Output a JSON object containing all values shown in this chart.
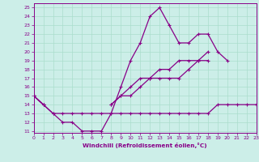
{
  "xlabel": "Windchill (Refroidissement éolien,°C)",
  "x_values": [
    0,
    1,
    2,
    3,
    4,
    5,
    6,
    7,
    8,
    9,
    10,
    11,
    12,
    13,
    14,
    15,
    16,
    17,
    18,
    19,
    20,
    21,
    22,
    23
  ],
  "line1": [
    15,
    14,
    13,
    12,
    12,
    11,
    11,
    11,
    13,
    16,
    19,
    21,
    24,
    25,
    23,
    21,
    21,
    22,
    22,
    20,
    19,
    null,
    null,
    14
  ],
  "line2": [
    15,
    14,
    13,
    13,
    13,
    13,
    13,
    13,
    13,
    13,
    13,
    13,
    13,
    13,
    13,
    13,
    13,
    13,
    13,
    14,
    14,
    14,
    14,
    14
  ],
  "line3": [
    15,
    14,
    null,
    null,
    null,
    null,
    null,
    null,
    14,
    15,
    15,
    16,
    17,
    17,
    17,
    17,
    18,
    19,
    19,
    null,
    null,
    null,
    null,
    14
  ],
  "line4": [
    15,
    null,
    null,
    null,
    null,
    null,
    null,
    null,
    14,
    15,
    16,
    17,
    17,
    18,
    18,
    19,
    19,
    19,
    20,
    null,
    null,
    null,
    null,
    14
  ],
  "line_color": "#880088",
  "bg_color": "#cceee8",
  "grid_color": "#aaddcc",
  "xlim": [
    0,
    23
  ],
  "ylim": [
    10.8,
    25.5
  ],
  "yticks": [
    11,
    12,
    13,
    14,
    15,
    16,
    17,
    18,
    19,
    20,
    21,
    22,
    23,
    24,
    25
  ],
  "xticks": [
    0,
    1,
    2,
    3,
    4,
    5,
    6,
    7,
    8,
    9,
    10,
    11,
    12,
    13,
    14,
    15,
    16,
    17,
    18,
    19,
    20,
    21,
    22,
    23
  ]
}
